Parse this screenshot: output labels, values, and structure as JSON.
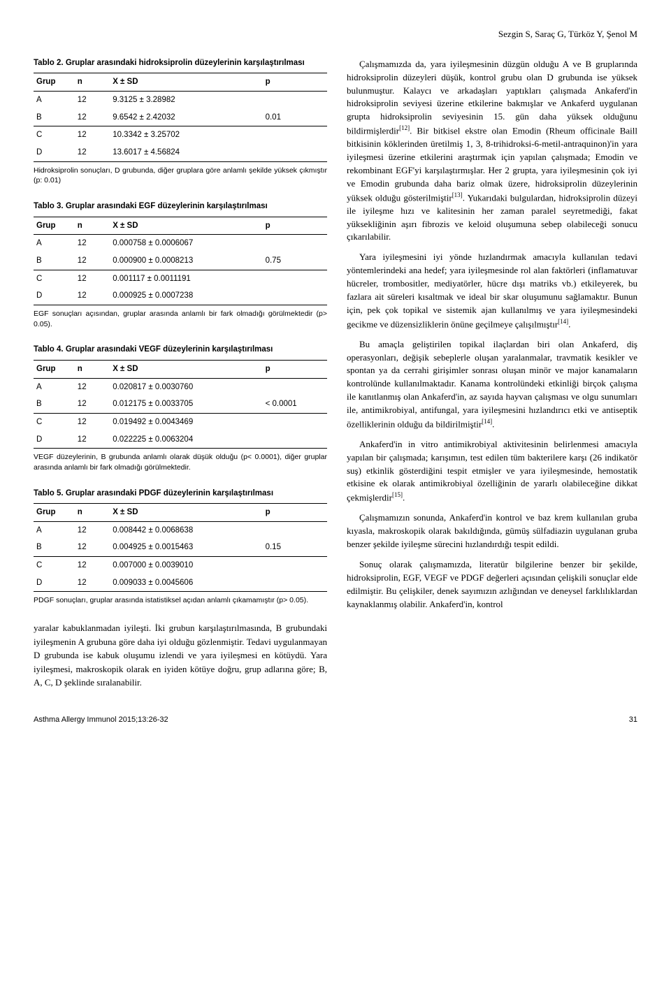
{
  "header": {
    "authors": "Sezgin S, Saraç G, Türköz Y, Şenol M"
  },
  "tables": [
    {
      "title_label": "Tablo 2.",
      "title_text": "Gruplar arasındaki hidroksiprolin düzeylerinin karşılaştırılması",
      "columns": [
        "Grup",
        "n",
        "X ± SD",
        "p"
      ],
      "rows": [
        [
          "A",
          "12",
          "9.3125 ± 3.28982",
          ""
        ],
        [
          "B",
          "12",
          "9.6542 ± 2.42032",
          "0.01"
        ],
        [
          "C",
          "12",
          "10.3342 ± 3.25702",
          ""
        ],
        [
          "D",
          "12",
          "13.6017 ± 4.56824",
          ""
        ]
      ],
      "divider_after_rows": [
        1,
        3
      ],
      "note": "Hidroksiprolin sonuçları, D grubunda, diğer gruplara göre anlamlı şekilde yüksek çıkmıştır (p: 0.01)"
    },
    {
      "title_label": "Tablo 3.",
      "title_text": "Gruplar arasındaki EGF düzeylerinin karşılaştırılması",
      "columns": [
        "Grup",
        "n",
        "X ± SD",
        "p"
      ],
      "rows": [
        [
          "A",
          "12",
          "0.000758 ± 0.0006067",
          ""
        ],
        [
          "B",
          "12",
          "0.000900 ± 0.0008213",
          "0.75"
        ],
        [
          "C",
          "12",
          "0.001117 ± 0.0011191",
          ""
        ],
        [
          "D",
          "12",
          "0.000925 ± 0.0007238",
          ""
        ]
      ],
      "divider_after_rows": [
        1,
        3
      ],
      "note": "EGF sonuçları açısından, gruplar arasında anlamlı bir fark olmadığı görülmektedir (p> 0.05)."
    },
    {
      "title_label": "Tablo 4.",
      "title_text": "Gruplar arasındaki VEGF düzeylerinin karşılaştırılması",
      "columns": [
        "Grup",
        "n",
        "X ± SD",
        "p"
      ],
      "rows": [
        [
          "A",
          "12",
          "0.020817 ± 0.0030760",
          ""
        ],
        [
          "B",
          "12",
          "0.012175 ± 0.0033705",
          "< 0.0001"
        ],
        [
          "C",
          "12",
          "0.019492 ± 0.0043469",
          ""
        ],
        [
          "D",
          "12",
          "0.022225 ± 0.0063204",
          ""
        ]
      ],
      "divider_after_rows": [
        1,
        3
      ],
      "note": "VEGF düzeylerinin, B grubunda anlamlı olarak düşük olduğu (p< 0.0001), diğer gruplar arasında anlamlı bir fark olmadığı görülmektedir."
    },
    {
      "title_label": "Tablo 5.",
      "title_text": "Gruplar arasındaki PDGF düzeylerinin karşılaştırılması",
      "columns": [
        "Grup",
        "n",
        "X ± SD",
        "p"
      ],
      "rows": [
        [
          "A",
          "12",
          "0.008442 ± 0.0068638",
          ""
        ],
        [
          "B",
          "12",
          "0.004925 ± 0.0015463",
          "0.15"
        ],
        [
          "C",
          "12",
          "0.007000 ± 0.0039010",
          ""
        ],
        [
          "D",
          "12",
          "0.009033 ± 0.0045606",
          ""
        ]
      ],
      "divider_after_rows": [
        1,
        3
      ],
      "note": "PDGF sonuçları, gruplar arasında istatistiksel açıdan anlamlı çıkamamıştır (p> 0.05)."
    }
  ],
  "left_body": "yaralar kabuklanmadan iyileşti. İki grubun karşılaştırılmasında, B grubundaki iyileşmenin A grubuna göre daha iyi olduğu gözlenmiştir. Tedavi uygulanmayan D grubunda ise kabuk oluşumu izlendi ve yara iyileşmesi en kötüydü. Yara iyileşmesi, makroskopik olarak en iyiden kötüye doğru, grup adlarına göre; B, A, C, D şeklinde sıralanabilir.",
  "right_body": {
    "p1a": "Çalışmamızda da, yara iyileşmesinin düzgün olduğu A ve B gruplarında hidroksiprolin düzeyleri düşük, kontrol grubu olan D grubunda ise yüksek bulunmuştur. Kalaycı ve arkadaşları yaptıkları çalışmada Ankaferd'in hidroksiprolin seviyesi üzerine etkilerine bakmışlar ve Ankaferd uygulanan grupta hidroksiprolin seviyesinin 15. gün daha yüksek olduğunu bildirmişlerdir",
    "ref1": "[12]",
    "p1b": ". Bir bitkisel ekstre olan Emodin (Rheum officinale Baill bitkisinin köklerinden üretilmiş 1, 3, 8-trihidroksi-6-metil-antraquinon)'in yara iyileşmesi üzerine etkilerini araştırmak için yapılan çalışmada; Emodin ve rekombinant EGF'yi karşılaştırmışlar. Her 2 grupta, yara iyileşmesinin çok iyi ve Emodin grubunda daha bariz olmak üzere, hidroksiprolin düzeylerinin yüksek olduğu gösterilmiştir",
    "ref2": "[13]",
    "p1c": ". Yukarıdaki bulgulardan, hidroksiprolin düzeyi ile iyileşme hızı ve kalitesinin her zaman paralel seyretmediği, fakat yüksekliğinin aşırı fibrozis ve keloid oluşumuna sebep olabileceği sonucu çıkarılabilir.",
    "p2a": "Yara iyileşmesini iyi yönde hızlandırmak amacıyla kullanılan tedavi yöntemlerindeki ana hedef; yara iyileşmesinde rol alan faktörleri (inflamatuvar hücreler, trombositler, mediyatörler, hücre dışı matriks vb.) etkileyerek, bu fazlara ait süreleri kısaltmak ve ideal bir skar oluşumunu sağlamaktır. Bunun için, pek çok topikal ve sistemik ajan kullanılmış ve yara iyileşmesindeki gecikme ve düzensizliklerin önüne geçilmeye çalışılmıştır",
    "ref3": "[14]",
    "p2b": ".",
    "p3a": "Bu amaçla geliştirilen topikal ilaçlardan biri olan Ankaferd, diş operasyonları, değişik sebeplerle oluşan yaralanmalar, travmatik kesikler ve spontan ya da cerrahi girişimler sonrası oluşan minör ve major kanamaların kontrolünde kullanılmaktadır. Kanama kontrolündeki etkinliği birçok çalışma ile kanıtlanmış olan Ankaferd'in, az sayıda hayvan çalışması ve olgu sunumları ile, antimikrobiyal, antifungal, yara iyileşmesini hızlandırıcı etki ve antiseptik özelliklerinin olduğu da bildirilmiştir",
    "ref4": "[14]",
    "p3b": ".",
    "p4a": "Ankaferd'in in vitro antimikrobiyal aktivitesinin belirlenmesi amacıyla yapılan bir çalışmada; karışımın, test edilen tüm bakterilere karşı (26 indikatör suş) etkinlik gösterdiğini tespit etmişler ve yara iyileşmesinde, hemostatik etkisine ek olarak antimikrobiyal özelliğinin de yararlı olabileceğine dikkat çekmişlerdir",
    "ref5": "[15]",
    "p4b": ".",
    "p5": "Çalışmamızın sonunda, Ankaferd'in kontrol ve baz krem kullanılan gruba kıyasla, makroskopik olarak bakıldığında, gümüş sülfadiazin uygulanan gruba benzer şekilde iyileşme sürecini hızlandırdığı tespit edildi.",
    "p6": "Sonuç olarak çalışmamızda, literatür bilgilerine benzer bir şekilde, hidroksiprolin, EGF, VEGF ve PDGF değerleri açısından çelişkili sonuçlar elde edilmiştir. Bu çelişkiler, denek sayımızın azlığından ve deneysel farklılıklardan kaynaklanmış olabilir. Ankaferd'in, kontrol"
  },
  "footer": {
    "journal": "Asthma Allergy Immunol 2015;13:26-32",
    "page": "31"
  }
}
